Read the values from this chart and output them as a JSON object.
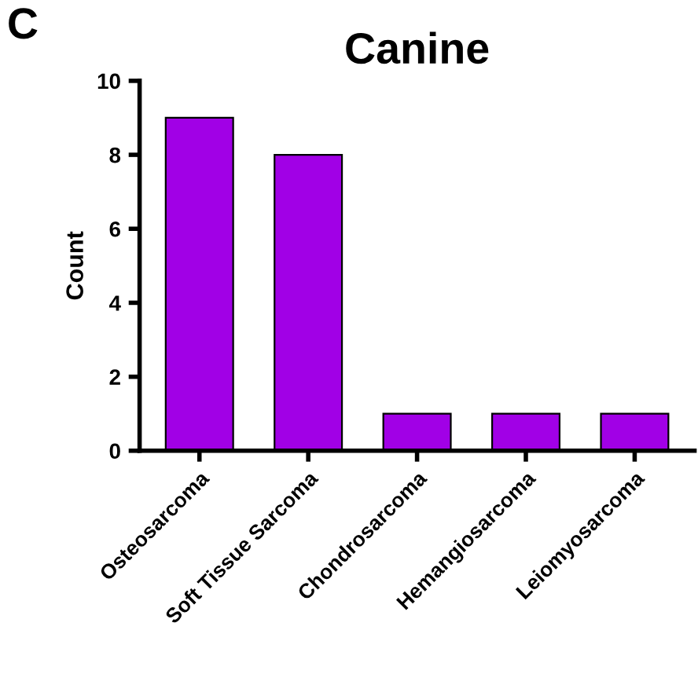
{
  "chart_data": {
    "type": "bar",
    "title": "Canine",
    "ylabel": "Count",
    "categories": [
      "Osteosarcoma",
      "Soft Tissue Sarcoma",
      "Chondrosarcoma",
      "Hemangiosarcoma",
      "Leiomyosarcoma"
    ],
    "values": [
      9,
      8,
      1,
      1,
      1
    ],
    "color": "#a100e6",
    "ylim": [
      0,
      10
    ],
    "yticks": [
      0,
      2,
      4,
      6,
      8,
      10
    ],
    "grid": false,
    "legend": false,
    "annotations": [
      "C"
    ]
  }
}
